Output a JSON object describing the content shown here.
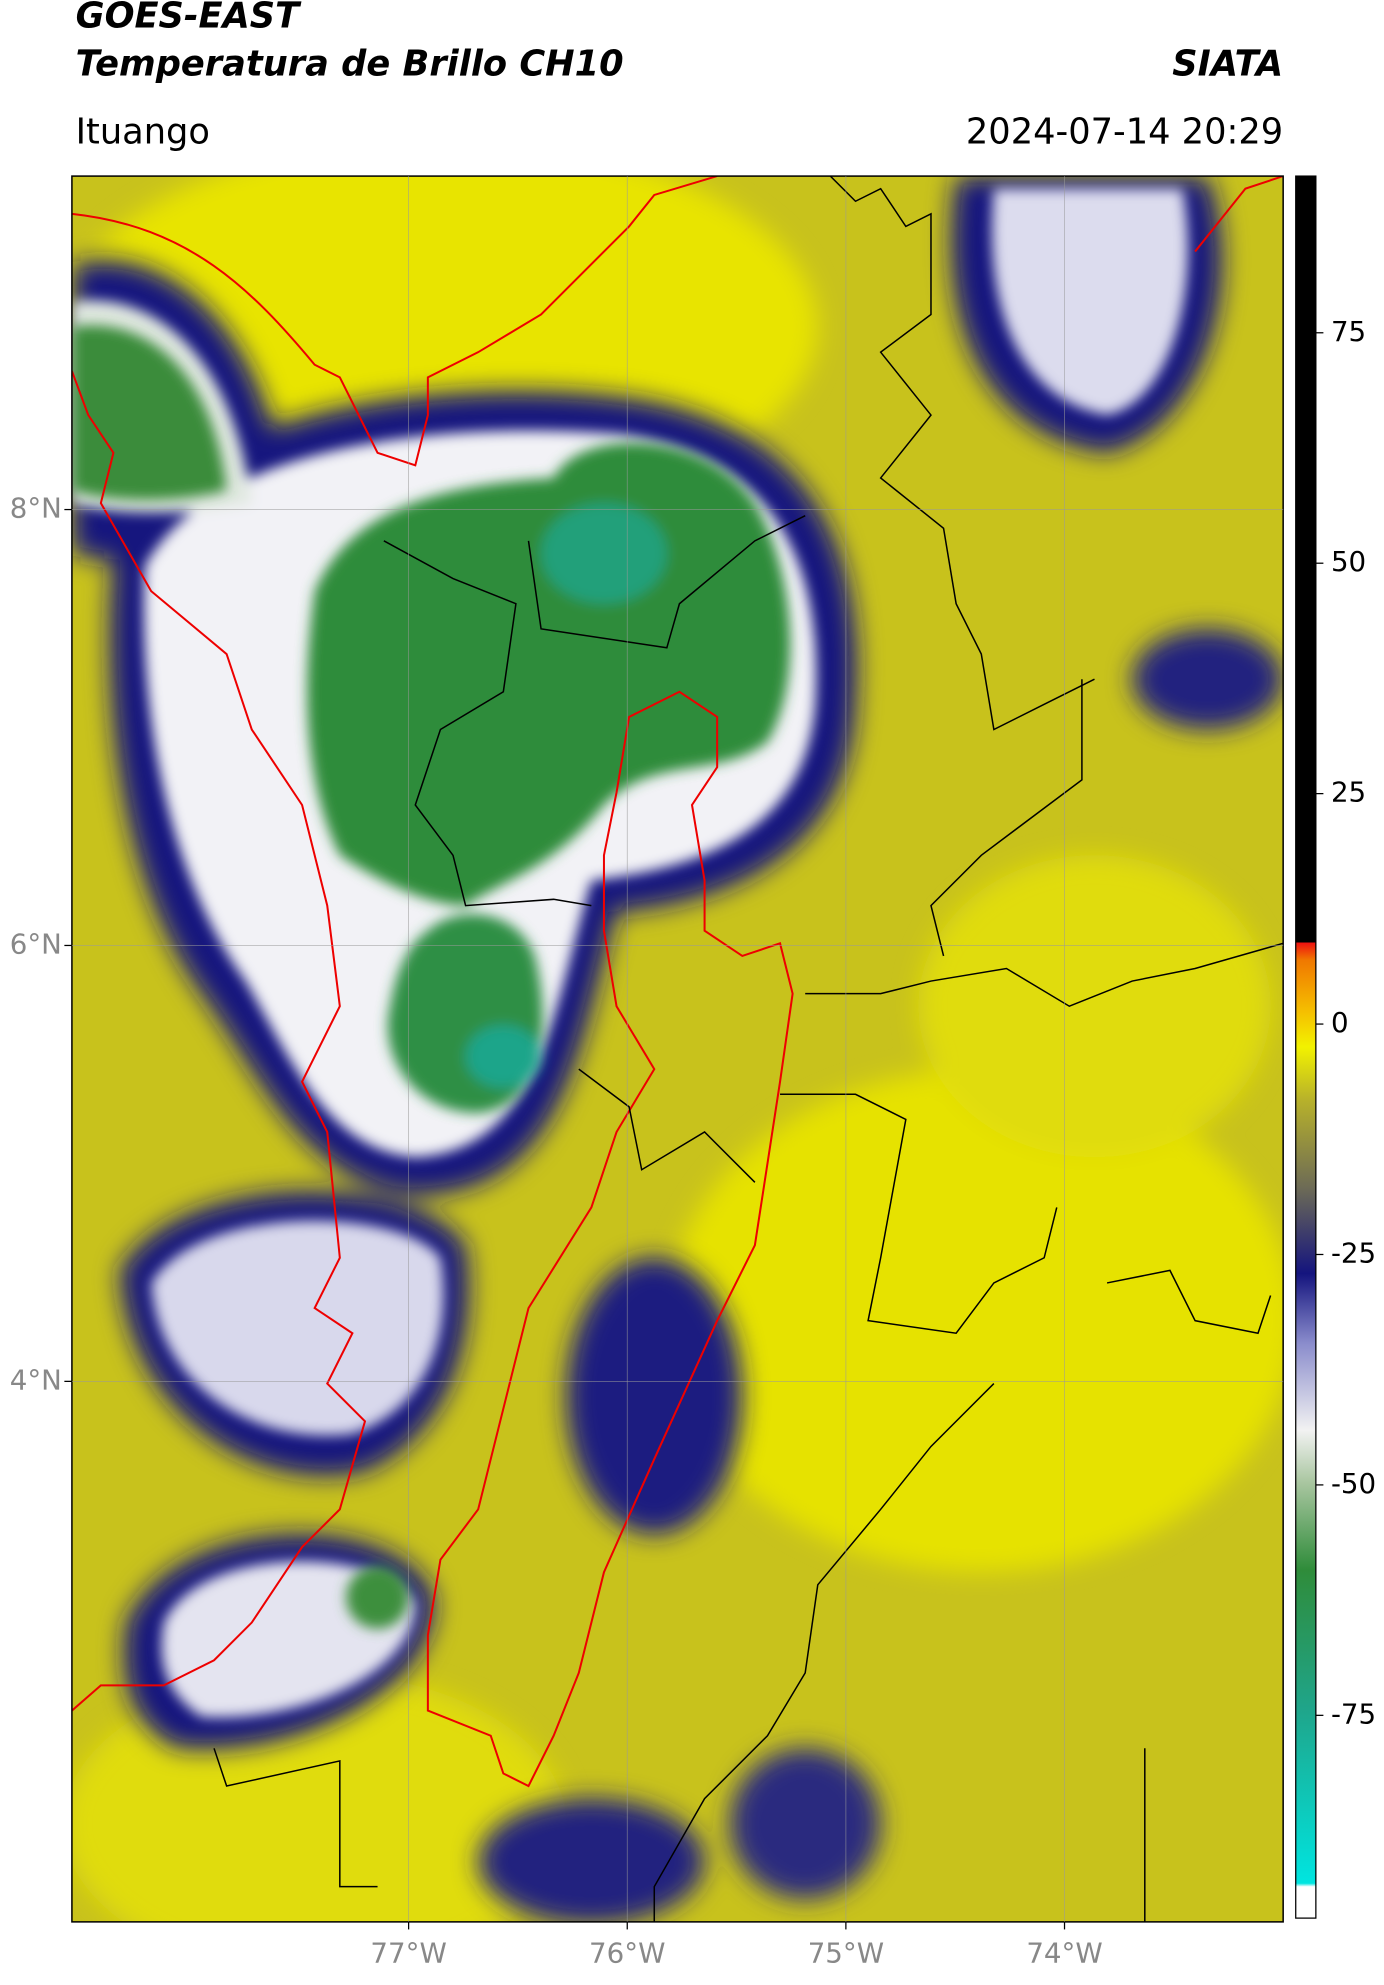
{
  "header": {
    "title": "GOES-EAST",
    "subtitle": "Temperatura de Brillo CH10",
    "agency": "SIATA",
    "location": "Ituango",
    "datetime": "2024-07-14 20:29"
  },
  "map": {
    "xlim": [
      -78.54,
      -73.0
    ],
    "ylim": [
      1.52,
      9.53
    ],
    "xticks": [
      {
        "value": -77,
        "label": "77°W"
      },
      {
        "value": -76,
        "label": "76°W"
      },
      {
        "value": -75,
        "label": "75°W"
      },
      {
        "value": -74,
        "label": "74°W"
      }
    ],
    "yticks": [
      {
        "value": 8,
        "label": "8°N"
      },
      {
        "value": 6,
        "label": "6°N"
      },
      {
        "value": 4,
        "label": "4°N"
      }
    ]
  },
  "colorbar": {
    "lim": [
      -97,
      92
    ],
    "ticks": [
      75,
      50,
      25,
      0,
      -25,
      -50,
      -75
    ]
  }
}
